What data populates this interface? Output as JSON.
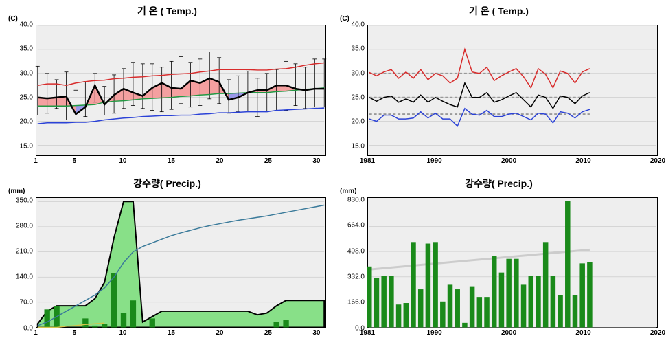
{
  "panels": {
    "top_left": {
      "title": "기 온 ( Temp.)",
      "y_unit": "(C)",
      "type": "line",
      "background_color": "#eeeeee",
      "ylim": [
        13,
        40
      ],
      "yticks": [
        15.0,
        20.0,
        25.0,
        30.0,
        35.0,
        40.0
      ],
      "xlim": [
        1,
        31
      ],
      "xticks": [
        1,
        5,
        10,
        15,
        20,
        25,
        30
      ],
      "grid_color": "#bbbbbb",
      "series": {
        "red_upper": {
          "color": "#d82c2c",
          "width": 1.5,
          "values": [
            27.5,
            27.8,
            27.8,
            27.5,
            28.0,
            28.3,
            28.5,
            28.6,
            28.9,
            29.0,
            29.2,
            29.3,
            29.5,
            29.6,
            29.8,
            29.9,
            30.0,
            30.3,
            30.5,
            30.8,
            30.8,
            30.8,
            30.8,
            30.7,
            30.7,
            30.9,
            31.0,
            31.3,
            31.7,
            32.0,
            32.2
          ]
        },
        "blue_lower": {
          "color": "#2b42d7",
          "width": 1.5,
          "values": [
            19.5,
            19.7,
            19.7,
            19.7,
            19.8,
            19.8,
            20.0,
            20.3,
            20.5,
            20.7,
            20.8,
            21.0,
            21.1,
            21.2,
            21.2,
            21.3,
            21.3,
            21.5,
            21.6,
            21.8,
            21.8,
            21.9,
            22.0,
            22.0,
            22.0,
            22.3,
            22.4,
            22.5,
            22.6,
            22.7,
            22.8
          ]
        },
        "green_mean": {
          "color": "#229944",
          "width": 1.5,
          "values": [
            23.2,
            23.2,
            23.2,
            23.2,
            23.3,
            23.4,
            23.5,
            24.0,
            24.2,
            24.3,
            24.5,
            24.7,
            24.8,
            24.9,
            25.0,
            25.2,
            25.3,
            25.5,
            25.6,
            25.8,
            25.8,
            25.9,
            26.0,
            26.0,
            26.0,
            26.2,
            26.3,
            26.5,
            26.7,
            26.8,
            27.0
          ]
        },
        "black_actual": {
          "color": "#000000",
          "width": 2.5,
          "values": [
            25.0,
            24.8,
            25.0,
            25.2,
            21.5,
            23.0,
            27.5,
            23.5,
            25.5,
            26.8,
            26.0,
            25.3,
            27.0,
            28.0,
            27.0,
            26.8,
            28.5,
            28.0,
            29.0,
            28.2,
            24.5,
            25.0,
            26.0,
            26.5,
            26.5,
            27.5,
            27.5,
            26.8,
            26.5,
            26.8,
            26.8
          ]
        },
        "fill_above_color": "#f4a0a0",
        "fill_below_color": "#9898e8",
        "error_bars": {
          "color": "#000000",
          "high": [
            31.5,
            30.0,
            28.7,
            30.3,
            26.5,
            28.3,
            30.0,
            27.3,
            29.7,
            31.0,
            32.3,
            32.0,
            32.0,
            31.3,
            32.5,
            33.5,
            32.3,
            33.0,
            34.5,
            33.3,
            28.7,
            29.5,
            30.5,
            29.0,
            30.0,
            30.8,
            32.5,
            32.0,
            31.3,
            33.0,
            33.0
          ],
          "low": [
            21.3,
            21.7,
            22.7,
            20.3,
            19.8,
            21.0,
            24.0,
            21.3,
            21.7,
            22.7,
            23.3,
            22.7,
            22.3,
            22.0,
            22.5,
            23.7,
            23.0,
            23.3,
            24.7,
            23.7,
            21.7,
            22.0,
            22.0,
            21.0,
            22.0,
            22.3,
            22.3,
            23.3,
            22.7,
            23.0,
            23.0
          ]
        }
      }
    },
    "top_right": {
      "title": "기 온 ( Temp.)",
      "y_unit": "(C)",
      "type": "line",
      "background_color": "#eeeeee",
      "ylim": [
        13,
        40
      ],
      "yticks": [
        15.0,
        20.0,
        25.0,
        30.0,
        35.0,
        40.0
      ],
      "xlim": [
        1981,
        2020
      ],
      "xticks": [
        1981,
        1990,
        2000,
        2010,
        2020
      ],
      "grid_color": "#bbbbbb",
      "ref_lines": {
        "color": "#999999",
        "values": [
          21.5,
          25.0,
          30.0
        ]
      },
      "series": {
        "red": {
          "color": "#d82c2c",
          "width": 1.5,
          "years": [
            1981,
            1982,
            1983,
            1984,
            1985,
            1986,
            1987,
            1988,
            1989,
            1990,
            1991,
            1992,
            1993,
            1994,
            1995,
            1996,
            1997,
            1998,
            1999,
            2000,
            2001,
            2002,
            2003,
            2004,
            2005,
            2006,
            2007,
            2008,
            2009,
            2010,
            2011
          ],
          "values": [
            30.2,
            29.5,
            30.3,
            30.8,
            29.0,
            30.3,
            29.0,
            30.8,
            28.7,
            30.0,
            29.5,
            28.0,
            29.0,
            35.0,
            30.3,
            30.0,
            31.3,
            28.5,
            29.5,
            30.3,
            31.0,
            29.3,
            27.0,
            31.0,
            29.8,
            27.0,
            30.5,
            30.0,
            28.0,
            30.3,
            31.0
          ]
        },
        "black": {
          "color": "#000000",
          "width": 1.5,
          "years": [
            1981,
            1982,
            1983,
            1984,
            1985,
            1986,
            1987,
            1988,
            1989,
            1990,
            1991,
            1992,
            1993,
            1994,
            1995,
            1996,
            1997,
            1998,
            1999,
            2000,
            2001,
            2002,
            2003,
            2004,
            2005,
            2006,
            2007,
            2008,
            2009,
            2010,
            2011
          ],
          "values": [
            25.0,
            24.2,
            25.0,
            25.3,
            24.0,
            24.7,
            24.0,
            25.5,
            24.0,
            25.0,
            24.2,
            23.5,
            23.0,
            28.0,
            25.0,
            25.0,
            26.0,
            24.0,
            24.5,
            25.3,
            26.0,
            24.5,
            23.0,
            25.5,
            25.0,
            22.7,
            25.3,
            25.0,
            23.7,
            25.3,
            26.0
          ]
        },
        "blue": {
          "color": "#2b42d7",
          "width": 1.5,
          "years": [
            1981,
            1982,
            1983,
            1984,
            1985,
            1986,
            1987,
            1988,
            1989,
            1990,
            1991,
            1992,
            1993,
            1994,
            1995,
            1996,
            1997,
            1998,
            1999,
            2000,
            2001,
            2002,
            2003,
            2004,
            2005,
            2006,
            2007,
            2008,
            2009,
            2010,
            2011
          ],
          "values": [
            20.5,
            20.0,
            21.3,
            21.3,
            20.5,
            20.5,
            20.7,
            22.0,
            20.7,
            21.7,
            20.5,
            20.5,
            19.0,
            22.7,
            21.5,
            21.3,
            22.3,
            21.0,
            21.0,
            21.5,
            21.7,
            21.0,
            20.3,
            21.7,
            21.5,
            19.7,
            22.0,
            21.7,
            20.7,
            22.0,
            22.5
          ]
        }
      }
    },
    "bottom_left": {
      "title": "강수량( Precip.)",
      "y_unit": "(mm)",
      "type": "mixed",
      "background_color": "#eeeeee",
      "ylim": [
        0,
        360
      ],
      "yticks": [
        0.0,
        70.0,
        140.0,
        210.0,
        280.0,
        350.0
      ],
      "xlim": [
        1,
        31
      ],
      "xticks": [
        1,
        5,
        10,
        15,
        20,
        25,
        30
      ],
      "grid_color": "#bbbbbb",
      "area": {
        "color": "#88e088",
        "stroke": "#000000",
        "stroke_width": 2,
        "values": [
          10,
          45,
          60,
          60,
          60,
          60,
          80,
          125,
          250,
          350,
          350,
          15,
          30,
          45,
          45,
          45,
          45,
          45,
          45,
          45,
          45,
          45,
          45,
          35,
          40,
          60,
          75,
          75,
          75,
          75,
          75
        ]
      },
      "bars": {
        "color": "#1a8a1a",
        "values": {
          "2": 50,
          "3": 60,
          "6": 25,
          "7": 5,
          "8": 10,
          "9": 150,
          "10": 40,
          "11": 75,
          "13": 25,
          "26": 15,
          "27": 20
        }
      },
      "cum_line": {
        "color": "#3a7a9a",
        "width": 1.5,
        "values": [
          5,
          15,
          30,
          45,
          60,
          75,
          90,
          110,
          140,
          180,
          210,
          225,
          235,
          245,
          255,
          263,
          270,
          277,
          283,
          288,
          293,
          298,
          302,
          306,
          310,
          315,
          320,
          325,
          330,
          335,
          340
        ]
      },
      "yellow_line": {
        "color": "#d4c44a",
        "width": 1.5,
        "values": [
          0,
          0,
          0,
          3,
          5,
          8,
          10,
          12,
          null,
          null,
          null,
          null,
          null,
          null,
          null,
          null,
          null,
          null,
          null,
          null,
          null,
          null,
          null,
          null,
          null,
          null,
          null,
          null,
          null,
          null,
          null
        ]
      }
    },
    "bottom_right": {
      "title": "강수량( Precip.)",
      "y_unit": "(mm)",
      "type": "bar",
      "background_color": "#eeeeee",
      "ylim": [
        0,
        850
      ],
      "yticks": [
        0.0,
        166.0,
        332.0,
        498.0,
        664.0,
        830.0
      ],
      "xlim": [
        1981,
        2020
      ],
      "xticks": [
        1981,
        1990,
        2000,
        2010,
        2020
      ],
      "grid_color": "#bbbbbb",
      "trend_line": {
        "color": "#cccccc",
        "width": 3,
        "start": [
          1981,
          380
        ],
        "end": [
          2011,
          510
        ]
      },
      "bars": {
        "color": "#1a8a1a",
        "years": [
          1981,
          1982,
          1983,
          1984,
          1985,
          1986,
          1987,
          1988,
          1989,
          1990,
          1991,
          1992,
          1993,
          1994,
          1995,
          1996,
          1997,
          1998,
          1999,
          2000,
          2001,
          2002,
          2003,
          2004,
          2005,
          2006,
          2007,
          2008,
          2009,
          2010,
          2011
        ],
        "values": [
          400,
          325,
          340,
          340,
          150,
          160,
          560,
          250,
          550,
          560,
          170,
          280,
          250,
          30,
          270,
          200,
          200,
          470,
          360,
          450,
          450,
          280,
          340,
          340,
          560,
          340,
          210,
          830,
          210,
          420,
          430
        ]
      }
    }
  }
}
